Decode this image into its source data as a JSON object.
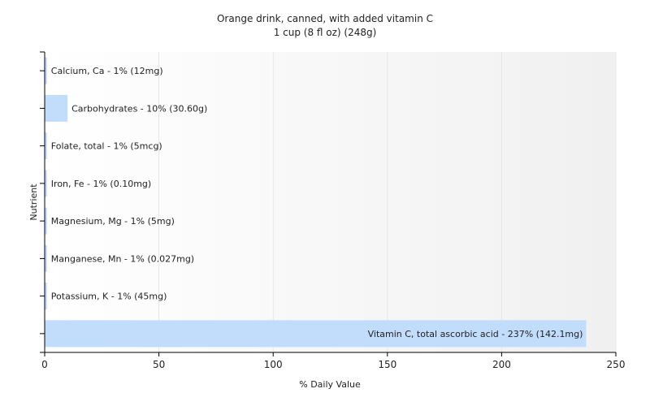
{
  "chart_data": {
    "type": "bar",
    "orientation": "horizontal",
    "title": "Orange drink, canned, with added vitamin C",
    "subtitle": "1 cup (8 fl oz) (248g)",
    "xlabel": "% Daily Value",
    "ylabel": "Nutrient",
    "xlim": [
      0,
      250
    ],
    "xticks": [
      0,
      50,
      100,
      150,
      200,
      250
    ],
    "grid": true,
    "legend": "none",
    "bar_color": "#c2dcfc",
    "categories": [
      "Calcium, Ca",
      "Carbohydrates",
      "Folate, total",
      "Iron, Fe",
      "Magnesium, Mg",
      "Manganese, Mn",
      "Potassium, K",
      "Vitamin C, total ascorbic acid"
    ],
    "values": [
      1,
      10,
      1,
      1,
      1,
      1,
      1,
      237
    ],
    "data_labels": [
      "Calcium, Ca - 1% (12mg)",
      "Carbohydrates - 10% (30.60g)",
      "Folate, total - 1% (5mcg)",
      "Iron, Fe - 1% (0.10mg)",
      "Magnesium, Mg - 1% (5mg)",
      "Manganese, Mn - 1% (0.027mg)",
      "Potassium, K - 1% (45mg)",
      "Vitamin C, total ascorbic acid - 237% (142.1mg)"
    ]
  }
}
